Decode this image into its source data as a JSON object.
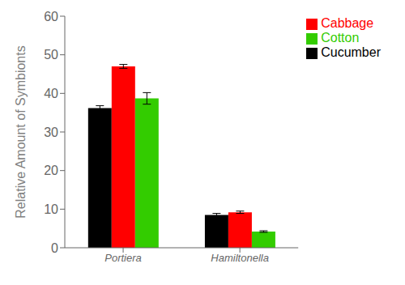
{
  "chart_data": {
    "type": "bar",
    "categories": [
      "Portiera",
      "Hamiltonella"
    ],
    "series": [
      {
        "name": "Cucumber",
        "color": "#000000",
        "values": [
          36.2,
          8.5
        ],
        "errors": [
          0.6,
          0.4
        ]
      },
      {
        "name": "Cabbage",
        "color": "#ff0000",
        "values": [
          47.0,
          9.2
        ],
        "errors": [
          0.5,
          0.3
        ]
      },
      {
        "name": "Cotton",
        "color": "#33cc00",
        "values": [
          38.7,
          4.2
        ],
        "errors": [
          1.5,
          0.2
        ]
      }
    ],
    "ylabel": "Relative Amount of Symbionts",
    "ylim": [
      0,
      60
    ],
    "yticks": [
      0,
      10,
      20,
      30,
      40,
      50,
      60
    ],
    "grid": false,
    "legend": "upper right"
  }
}
